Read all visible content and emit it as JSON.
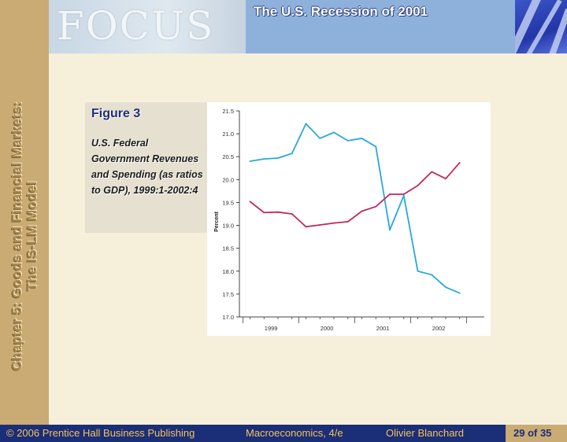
{
  "header": {
    "logo_text": "FOCUS",
    "title": "The U.S. Recession of 2001"
  },
  "sidebar": {
    "chapter_line1": "Chapter 5: Goods and Financial Markets:",
    "chapter_line2": "The IS-LM Model"
  },
  "figure": {
    "label": "Figure 3",
    "caption": "U.S. Federal Government Revenues and Spending (as ratios to GDP), 1999:1-2002:4"
  },
  "footer": {
    "copyright": "© 2006 Prentice Hall Business Publishing",
    "book": "Macroeconomics, 4/e",
    "author": "Olivier Blanchard",
    "page": "29 of 35"
  },
  "colors": {
    "revenues_line": "#29a8dc",
    "spending_line": "#c4265f"
  },
  "chart_data": {
    "type": "line",
    "ylabel": "Percent",
    "xlabel": "",
    "ylim": [
      17.0,
      21.5
    ],
    "yticks": [
      "21.5",
      "21.0",
      "20.5",
      "20.0",
      "19.5",
      "19.0",
      "18.5",
      "18.0",
      "17.5",
      "17.0"
    ],
    "year_labels": [
      "1999",
      "2000",
      "2001",
      "2002"
    ],
    "quarters": [
      "1999:1",
      "1999:2",
      "1999:3",
      "1999:4",
      "2000:1",
      "2000:2",
      "2000:3",
      "2000:4",
      "2001:1",
      "2001:2",
      "2001:3",
      "2001:4",
      "2002:1",
      "2002:2",
      "2002:3",
      "2002:4"
    ],
    "series": [
      {
        "values": [
          20.4,
          20.45,
          20.47,
          20.57,
          21.22,
          20.9,
          21.03,
          20.85,
          20.9,
          20.72,
          18.9,
          19.65,
          18.0,
          17.92,
          17.65,
          17.52
        ]
      },
      {
        "values": [
          19.52,
          19.28,
          19.29,
          19.25,
          18.97,
          19.01,
          19.05,
          19.08,
          19.31,
          19.41,
          19.68,
          19.68,
          19.87,
          20.17,
          20.02,
          20.37
        ]
      }
    ]
  }
}
